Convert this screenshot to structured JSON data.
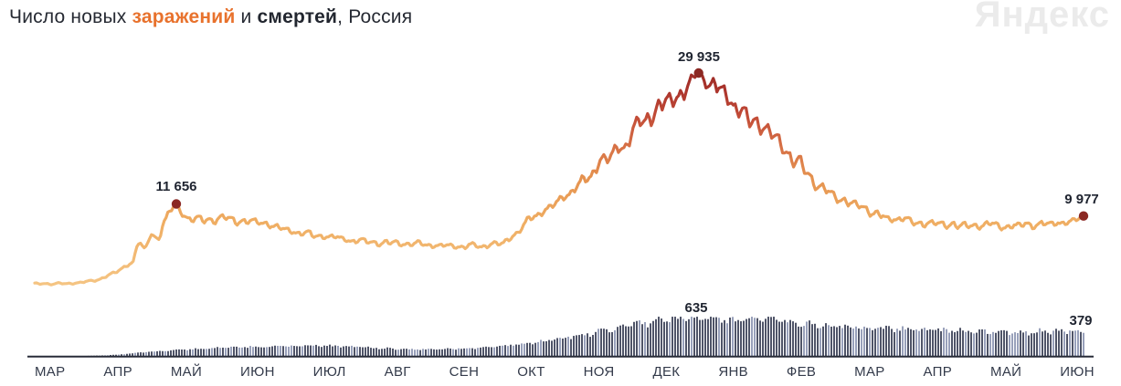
{
  "header": {
    "title_prefix": "Число новых ",
    "infections_word": "заражений",
    "conjunction": " и ",
    "deaths_word": "смертей",
    "title_suffix": ", Россия",
    "brand": "Яндекс"
  },
  "chart_data": [
    {
      "type": "line",
      "name": "new-infections",
      "series_label": "заражений",
      "region": "Россия",
      "ylim": [
        0,
        30500
      ],
      "x_labels": [
        "МАР",
        "АПР",
        "МАЙ",
        "ИЮН",
        "ИЮЛ",
        "АВГ",
        "СЕН",
        "ОКТ",
        "НОЯ",
        "ДЕК",
        "ЯНВ",
        "ФЕВ",
        "МАР",
        "АПР",
        "МАЙ",
        "ИЮН"
      ],
      "annotations": [
        {
          "label": "11 656",
          "value": 11656,
          "x_rel": 0.135
        },
        {
          "label": "29 935",
          "value": 29935,
          "x_rel": 0.633
        },
        {
          "label": "9 977",
          "value": 9977,
          "x_rel": 1.0
        }
      ],
      "gradient_stops": [
        [
          0,
          "#f5c584"
        ],
        [
          0.3,
          "#efad62"
        ],
        [
          0.5,
          "#e5924f"
        ],
        [
          0.65,
          "#d66f45"
        ],
        [
          0.78,
          "#c24c37"
        ],
        [
          0.9,
          "#ab342c"
        ],
        [
          1,
          "#992a25"
        ]
      ],
      "dot_color": "#8b2823",
      "points": [
        [
          0,
          500
        ],
        [
          0.032,
          550
        ],
        [
          0.054,
          900
        ],
        [
          0.076,
          2000
        ],
        [
          0.093,
          3600
        ],
        [
          0.099,
          6500
        ],
        [
          0.105,
          5200
        ],
        [
          0.111,
          7600
        ],
        [
          0.117,
          6800
        ],
        [
          0.124,
          9200
        ],
        [
          0.129,
          10600
        ],
        [
          0.135,
          11656
        ],
        [
          0.141,
          10000
        ],
        [
          0.148,
          9700
        ],
        [
          0.163,
          9400
        ],
        [
          0.18,
          9700
        ],
        [
          0.198,
          9300
        ],
        [
          0.215,
          9100
        ],
        [
          0.233,
          8300
        ],
        [
          0.254,
          7700
        ],
        [
          0.276,
          7100
        ],
        [
          0.298,
          6700
        ],
        [
          0.32,
          6400
        ],
        [
          0.341,
          6200
        ],
        [
          0.363,
          6000
        ],
        [
          0.385,
          5800
        ],
        [
          0.407,
          5700
        ],
        [
          0.428,
          5800
        ],
        [
          0.446,
          6300
        ],
        [
          0.459,
          7600
        ],
        [
          0.472,
          9500
        ],
        [
          0.489,
          11000
        ],
        [
          0.507,
          12800
        ],
        [
          0.524,
          15200
        ],
        [
          0.542,
          17500
        ],
        [
          0.559,
          19800
        ],
        [
          0.577,
          22800
        ],
        [
          0.594,
          25000
        ],
        [
          0.611,
          26800
        ],
        [
          0.623,
          28300
        ],
        [
          0.633,
          29935
        ],
        [
          0.645,
          28300
        ],
        [
          0.655,
          27500
        ],
        [
          0.664,
          26000
        ],
        [
          0.674,
          24200
        ],
        [
          0.685,
          23200
        ],
        [
          0.695,
          22300
        ],
        [
          0.706,
          20800
        ],
        [
          0.716,
          18800
        ],
        [
          0.727,
          17200
        ],
        [
          0.737,
          15800
        ],
        [
          0.747,
          14500
        ],
        [
          0.758,
          13400
        ],
        [
          0.768,
          12500
        ],
        [
          0.779,
          11700
        ],
        [
          0.789,
          11000
        ],
        [
          0.801,
          10300
        ],
        [
          0.814,
          9800
        ],
        [
          0.826,
          9400
        ],
        [
          0.842,
          9100
        ],
        [
          0.86,
          8900
        ],
        [
          0.877,
          8700
        ],
        [
          0.895,
          8600
        ],
        [
          0.912,
          8700
        ],
        [
          0.929,
          8500
        ],
        [
          0.947,
          8700
        ],
        [
          0.964,
          8800
        ],
        [
          0.979,
          9100
        ],
        [
          0.99,
          9400
        ],
        [
          1,
          9977
        ]
      ]
    },
    {
      "type": "bar",
      "name": "new-deaths",
      "series_label": "смертей",
      "region": "Россия",
      "ylim": [
        0,
        700
      ],
      "annotations": [
        {
          "label": "635",
          "value": 635,
          "x_rel": 0.631
        },
        {
          "label": "379",
          "value": 379,
          "x_rel": 1.0
        }
      ],
      "bar_color_dark": "#3c4157",
      "bar_color_light": "#8d96b2",
      "axis_color": "#282c38",
      "points": [
        [
          0.041,
          3
        ],
        [
          0.063,
          12
        ],
        [
          0.08,
          28
        ],
        [
          0.098,
          55
        ],
        [
          0.115,
          80
        ],
        [
          0.135,
          100
        ],
        [
          0.154,
          118
        ],
        [
          0.176,
          135
        ],
        [
          0.198,
          150
        ],
        [
          0.22,
          160
        ],
        [
          0.241,
          166
        ],
        [
          0.263,
          172
        ],
        [
          0.285,
          165
        ],
        [
          0.307,
          150
        ],
        [
          0.328,
          132
        ],
        [
          0.35,
          116
        ],
        [
          0.372,
          110
        ],
        [
          0.394,
          116
        ],
        [
          0.416,
          132
        ],
        [
          0.437,
          152
        ],
        [
          0.459,
          188
        ],
        [
          0.481,
          235
        ],
        [
          0.503,
          295
        ],
        [
          0.524,
          355
        ],
        [
          0.546,
          425
        ],
        [
          0.568,
          495
        ],
        [
          0.585,
          545
        ],
        [
          0.603,
          585
        ],
        [
          0.62,
          615
        ],
        [
          0.631,
          635
        ],
        [
          0.645,
          600
        ],
        [
          0.657,
          582
        ],
        [
          0.669,
          566
        ],
        [
          0.681,
          592
        ],
        [
          0.693,
          612
        ],
        [
          0.706,
          592
        ],
        [
          0.718,
          565
        ],
        [
          0.73,
          545
        ],
        [
          0.742,
          525
        ],
        [
          0.754,
          505
        ],
        [
          0.768,
          485
        ],
        [
          0.782,
          472
        ],
        [
          0.796,
          462
        ],
        [
          0.81,
          452
        ],
        [
          0.824,
          442
        ],
        [
          0.838,
          432
        ],
        [
          0.854,
          422
        ],
        [
          0.869,
          415
        ],
        [
          0.885,
          408
        ],
        [
          0.901,
          398
        ],
        [
          0.916,
          392
        ],
        [
          0.932,
          388
        ],
        [
          0.948,
          392
        ],
        [
          0.963,
          398
        ],
        [
          0.977,
          403
        ],
        [
          0.99,
          408
        ],
        [
          1,
          379
        ]
      ]
    }
  ]
}
